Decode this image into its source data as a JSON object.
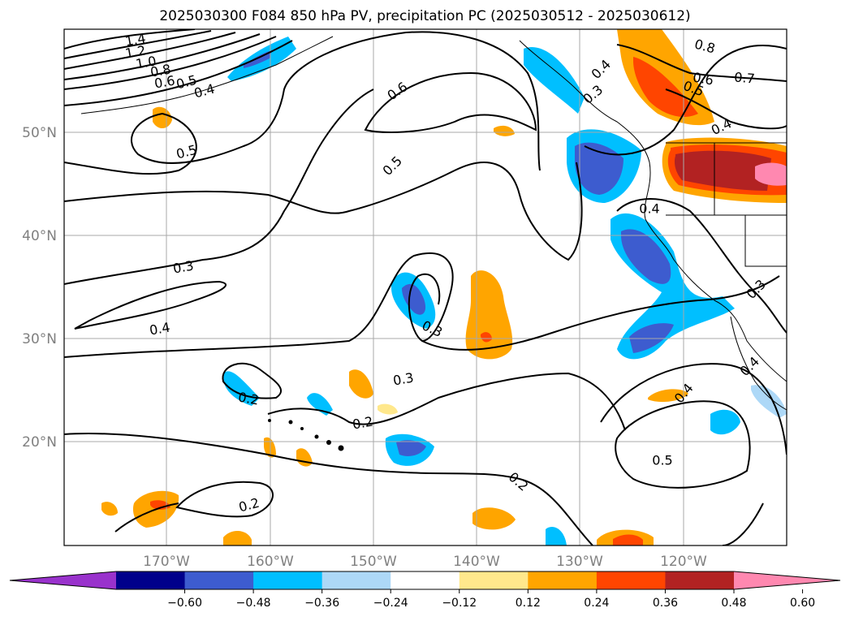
{
  "title": "2025030300 F084 850 hPa PV, precipitation PC (2025030512 - 2025030612)",
  "map": {
    "lat_ticks": [
      "50°N",
      "40°N",
      "30°N",
      "20°N"
    ],
    "lon_ticks": [
      "170°W",
      "160°W",
      "150°W",
      "140°W",
      "130°W",
      "120°W"
    ]
  },
  "contour_labels": [
    "1.4",
    "1.2",
    "1.0",
    "0.8",
    "0.6",
    "0.5",
    "0.4",
    "0.5",
    "0.6",
    "0.5",
    "0.4",
    "0.3",
    "0.4",
    "0.3",
    "0.3",
    "0.2",
    "0.2",
    "0.2",
    "0.2",
    "0.4",
    "0.8",
    "0.6",
    "0.7",
    "0.5",
    "0.4",
    "0.4",
    "0.3",
    "0.4",
    "0.5",
    "0.3"
  ],
  "colorbar": {
    "colors": [
      "#9932cc",
      "#00008b",
      "#3d5ccf",
      "#00bfff",
      "#add8f7",
      "#ffffff",
      "#ffe88c",
      "#ffa500",
      "#ff4500",
      "#b22222",
      "#ff88b0"
    ],
    "tick_labels": [
      "−0.60",
      "−0.48",
      "−0.36",
      "−0.24",
      "−0.12",
      "0.12",
      "0.24",
      "0.36",
      "0.48",
      "0.60"
    ]
  },
  "colors": {
    "grid": "#a9a9a9",
    "contour": "#000000",
    "tick_text": "#808080"
  }
}
